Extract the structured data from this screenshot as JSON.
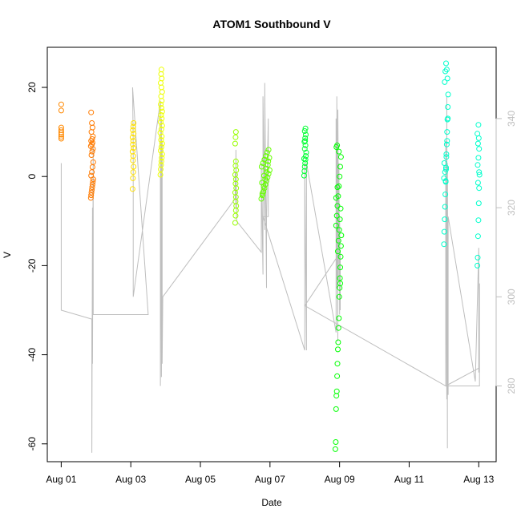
{
  "chart_data": {
    "type": "scatter",
    "title": "ATOM1 Southbound V",
    "xlabel": "Date",
    "ylabel": "V",
    "x_ticks": [
      "Aug 01",
      "Aug 03",
      "Aug 05",
      "Aug 07",
      "Aug 09",
      "Aug 11",
      "Aug 13"
    ],
    "x_tick_days": [
      1,
      3,
      5,
      7,
      9,
      11,
      13
    ],
    "xlim_days": [
      0.6,
      13.5
    ],
    "ylim": [
      -64,
      29
    ],
    "y_ticks": [
      -60,
      -40,
      -20,
      0,
      20
    ],
    "y2lim": [
      263,
      356
    ],
    "y2_ticks": [
      280,
      300,
      320,
      340
    ],
    "y2_color": "#bebebe",
    "line_color": "#bebebe",
    "grid": false,
    "legend": "none",
    "scatter_groups": [
      {
        "color": "#ff8800",
        "x": [
          1.0,
          1.0,
          1.0,
          1.0,
          1.0,
          1.0,
          1.0,
          1.0
        ],
        "y": [
          16.2,
          14.8,
          11.0,
          10.4,
          9.9,
          9.4,
          8.9,
          8.5
        ]
      },
      {
        "color": "#ff7a00",
        "x": [
          1.85,
          1.86,
          1.87,
          1.88,
          1.89,
          1.9,
          1.91,
          1.92,
          1.86,
          1.88,
          1.9,
          1.92,
          1.87,
          1.89,
          1.91,
          1.85,
          1.88,
          1.9,
          1.86,
          1.89,
          1.91,
          1.87,
          1.9,
          1.88,
          1.86
        ],
        "y": [
          -4.8,
          -4.2,
          -3.6,
          -3.0,
          -2.4,
          -1.8,
          -1.2,
          -0.6,
          0.2,
          1.0,
          2.1,
          3.2,
          4.8,
          5.6,
          6.2,
          6.8,
          7.2,
          7.6,
          8.0,
          8.4,
          9.0,
          10.0,
          11.0,
          12.0,
          14.4
        ]
      },
      {
        "color": "#ffe100",
        "x": [
          3.05,
          3.06,
          3.07,
          3.08,
          3.06,
          3.07,
          3.05,
          3.08,
          3.06,
          3.07,
          3.05,
          3.08,
          3.06,
          3.07,
          3.08
        ],
        "y": [
          -2.8,
          -0.4,
          1.0,
          2.2,
          3.6,
          4.6,
          5.6,
          6.4,
          7.2,
          8.0,
          8.8,
          9.6,
          10.4,
          11.2,
          12.0
        ]
      },
      {
        "color": "#eeff00",
        "x": [
          3.85,
          3.86,
          3.87,
          3.88,
          3.89,
          3.9,
          3.86,
          3.88,
          3.9,
          3.87,
          3.89,
          3.85,
          3.88,
          3.9,
          3.86,
          3.89,
          3.87,
          3.9,
          3.88,
          3.86,
          3.89,
          3.87,
          3.9,
          3.88,
          3.86,
          3.89,
          3.87,
          3.88
        ],
        "y": [
          0.4,
          1.6,
          2.6,
          3.4,
          4.2,
          5.0,
          5.8,
          6.6,
          7.4,
          8.2,
          9.0,
          9.8,
          10.6,
          11.4,
          12.2,
          13.0,
          13.8,
          14.6,
          15.4,
          16.2,
          17.0,
          18.0,
          19.0,
          20.0,
          21.0,
          22.0,
          23.0,
          24.0
        ]
      },
      {
        "color": "#99ff00",
        "x": [
          6.0,
          6.01,
          6.02,
          6.03,
          6.01,
          6.02,
          6.0,
          6.03,
          6.01,
          6.02,
          6.0,
          6.03,
          6.01,
          6.02,
          6.0,
          6.01,
          6.02
        ],
        "y": [
          -10.4,
          -8.8,
          -7.6,
          -6.6,
          -5.6,
          -4.6,
          -3.6,
          -2.6,
          -1.6,
          -0.6,
          0.4,
          1.4,
          2.4,
          3.4,
          7.4,
          8.8,
          10.0
        ]
      },
      {
        "color": "#66ff00",
        "x": [
          6.75,
          6.78,
          6.81,
          6.84,
          6.87,
          6.9,
          6.93,
          6.96,
          6.99,
          6.76,
          6.8,
          6.84,
          6.88,
          6.92,
          6.96,
          6.78,
          6.82,
          6.86,
          6.9,
          6.94,
          6.98,
          6.77,
          6.83,
          6.89,
          6.95
        ],
        "y": [
          -5.0,
          -4.2,
          -3.4,
          -2.6,
          -1.8,
          -1.0,
          -0.2,
          0.6,
          1.4,
          2.2,
          3.0,
          3.8,
          4.6,
          5.4,
          6.0,
          -3.8,
          -2.2,
          -0.6,
          1.0,
          2.6,
          4.2,
          -1.4,
          0.2,
          1.8,
          3.4
        ]
      },
      {
        "color": "#00ff33",
        "x": [
          7.98,
          7.99,
          8.0,
          8.01,
          8.02,
          8.03,
          8.04,
          8.0,
          8.02,
          7.99,
          8.01,
          8.03,
          8.0,
          8.02,
          7.98,
          8.01
        ],
        "y": [
          0.2,
          1.2,
          2.2,
          3.0,
          3.8,
          4.6,
          5.4,
          6.2,
          7.0,
          7.8,
          8.6,
          9.4,
          10.2,
          10.8,
          4.0,
          8.0
        ]
      },
      {
        "color": "#00ff00",
        "x": [
          8.88,
          8.89,
          8.9,
          8.91,
          8.92,
          8.93,
          8.94,
          8.95,
          8.96,
          8.97,
          8.98,
          8.99,
          9.0,
          9.01,
          9.02,
          9.03,
          9.04,
          9.05,
          8.9,
          8.92,
          8.94,
          8.96,
          8.98,
          9.0,
          9.02,
          9.04,
          8.91,
          8.93,
          8.95,
          8.97,
          8.99,
          9.01,
          9.03,
          8.9,
          8.94,
          8.98,
          9.02
        ],
        "y": [
          -61.2,
          -59.6,
          -52.2,
          -49.2,
          -48.2,
          -44.8,
          -42.0,
          -38.8,
          -37.2,
          -34.0,
          -31.8,
          -27.0,
          -25.0,
          -22.8,
          -20.4,
          -18.0,
          -15.6,
          -13.2,
          -11.0,
          -8.8,
          -6.6,
          -4.4,
          -2.2,
          0.0,
          2.2,
          4.4,
          6.6,
          7.0,
          -16.8,
          -14.4,
          -12.0,
          -9.6,
          -7.2,
          -4.8,
          -2.4,
          5.6,
          -24.0
        ]
      },
      {
        "color": "#00ffcc",
        "x": [
          12.0,
          12.01,
          12.02,
          12.03,
          12.04,
          12.05,
          12.06,
          12.07,
          12.08,
          12.09,
          12.1,
          12.11,
          12.12,
          12.02,
          12.04,
          12.06,
          12.08,
          12.1,
          12.01,
          12.03,
          12.05,
          12.07,
          12.09,
          12.11,
          12.0,
          12.06
        ],
        "y": [
          -15.2,
          -12.4,
          -9.6,
          -6.8,
          -4.0,
          -1.2,
          1.6,
          4.4,
          7.2,
          10.0,
          12.8,
          15.6,
          18.4,
          21.2,
          23.6,
          25.4,
          24.0,
          22.0,
          3.0,
          1.0,
          -1.0,
          5.0,
          8.0,
          13.0,
          -0.4,
          2.0
        ]
      },
      {
        "color": "#00ffcc",
        "x": [
          12.96,
          12.97,
          12.98,
          12.99,
          13.0,
          13.01,
          13.02,
          12.97,
          12.99,
          13.01,
          12.98,
          13.0,
          12.96,
          12.99,
          13.01,
          12.98
        ],
        "y": [
          -20.0,
          -18.2,
          -13.4,
          -9.8,
          -6.0,
          -2.6,
          0.4,
          2.6,
          4.2,
          6.2,
          7.4,
          8.6,
          9.6,
          11.6,
          1.0,
          -1.4
        ]
      }
    ],
    "secondary_line": {
      "x": [
        1.0,
        1.0,
        1.0,
        1.88,
        1.88,
        1.9,
        1.9,
        1.92,
        1.92,
        3.5,
        3.05,
        3.05,
        3.07,
        3.07,
        3.85,
        3.85,
        3.88,
        3.88,
        3.9,
        3.9,
        3.92,
        3.92,
        6.0,
        6.0,
        6.02,
        6.02,
        6.04,
        6.04,
        6.75,
        6.75,
        6.8,
        6.8,
        6.85,
        6.85,
        6.9,
        6.9,
        6.95,
        6.95,
        6.8,
        8.0,
        8.0,
        8.05,
        8.05,
        8.9,
        8.9,
        8.92,
        8.92,
        8.95,
        8.95,
        8.98,
        8.98,
        9.0,
        9.0,
        9.02,
        9.02,
        8.0,
        12.05,
        12.05,
        12.08,
        12.08,
        12.1,
        12.1,
        12.12,
        12.12,
        12.9,
        13.0,
        13.0,
        13.02,
        13.02,
        12.05,
        13.0
      ],
      "y": [
        320,
        330,
        297,
        295,
        265,
        320,
        285,
        334,
        296,
        296,
        347,
        347,
        335,
        300,
        344,
        280,
        340,
        282,
        335,
        285,
        300,
        300,
        322,
        328,
        320,
        333,
        318,
        317,
        310,
        330,
        305,
        345,
        315,
        348,
        302,
        318,
        340,
        318,
        318,
        288,
        330,
        288,
        330,
        292,
        340,
        302,
        345,
        290,
        342,
        304,
        330,
        296,
        318,
        297,
        310,
        298,
        280,
        335,
        277,
        345,
        266,
        330,
        278,
        318,
        281,
        311,
        283,
        303,
        280,
        280,
        284
      ]
    }
  }
}
